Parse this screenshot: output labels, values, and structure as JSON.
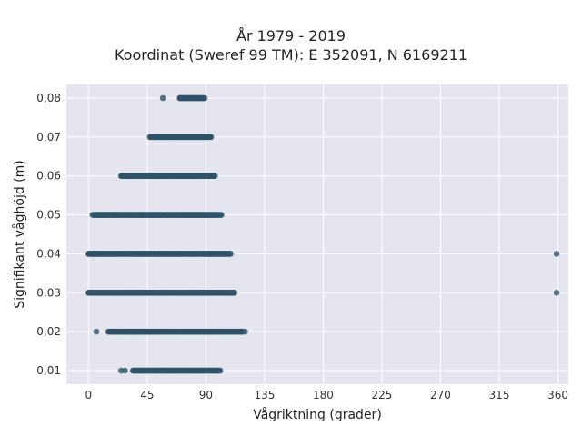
{
  "chart_data": {
    "type": "scatter",
    "title_line1": "År 1979 - 2019",
    "title_line2": "Koordinat (Sweref 99 TM): E 352091, N 6169211",
    "xlabel": "Vågriktning (grader)",
    "ylabel": "Signifikant våghöjd (m)",
    "xlim": [
      -17,
      368
    ],
    "ylim": [
      0.0065,
      0.0835
    ],
    "x_ticks": [
      0,
      45,
      90,
      135,
      180,
      225,
      270,
      315,
      360
    ],
    "y_ticks": [
      0.01,
      0.02,
      0.03,
      0.04,
      0.05,
      0.06,
      0.07,
      0.08
    ],
    "y_tick_labels": [
      "0,01",
      "0,02",
      "0,03",
      "0,04",
      "0,05",
      "0,06",
      "0,07",
      "0,08"
    ],
    "grid": true,
    "marker_color": "#2f5368",
    "point_groups": [
      {
        "y": 0.01,
        "x_dense": [
          34,
          101
        ],
        "x_sparse": [
          25,
          28,
          45,
          52,
          56
        ]
      },
      {
        "y": 0.02,
        "x_dense": [
          15,
          118
        ],
        "x_sparse": [
          6,
          120
        ]
      },
      {
        "y": 0.03,
        "x_dense": [
          0,
          112
        ],
        "x_sparse": [
          359
        ]
      },
      {
        "y": 0.04,
        "x_dense": [
          0,
          109
        ],
        "x_sparse": [
          359
        ]
      },
      {
        "y": 0.05,
        "x_dense": [
          3,
          102
        ],
        "x_sparse": []
      },
      {
        "y": 0.06,
        "x_dense": [
          25,
          97
        ],
        "x_sparse": []
      },
      {
        "y": 0.07,
        "x_dense": [
          47,
          94
        ],
        "x_sparse": []
      },
      {
        "y": 0.08,
        "x_dense": [
          70,
          89
        ],
        "x_sparse": [
          57,
          70
        ]
      }
    ]
  }
}
